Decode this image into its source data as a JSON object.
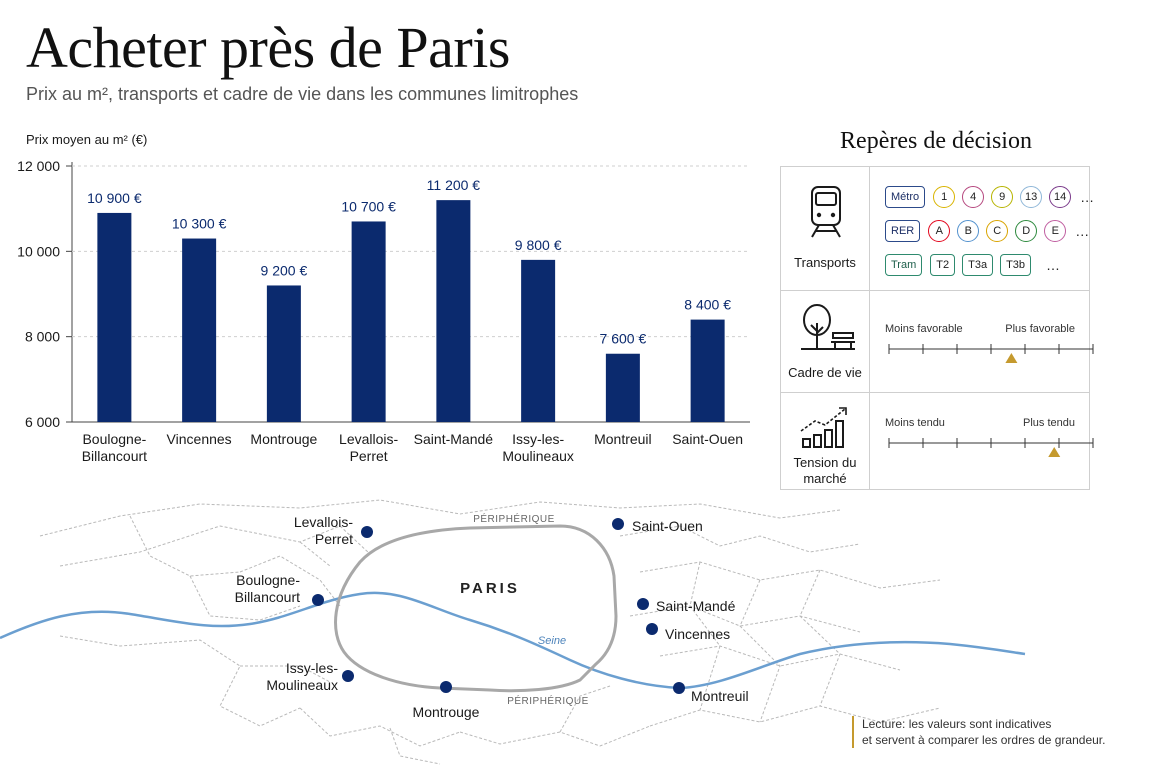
{
  "header": {
    "title": "Acheter près de Paris",
    "subtitle": "Prix au m², transports et cadre de vie dans les communes limitrophes"
  },
  "chart_data": {
    "type": "bar",
    "ylabel": "Prix moyen au m² (€)",
    "ylim": [
      6000,
      12000
    ],
    "yticks": [
      6000,
      8000,
      10000,
      12000
    ],
    "ytick_labels": [
      "6 000",
      "8 000",
      "10 000",
      "12 000"
    ],
    "grid": true,
    "bar_color": "#0b2a6e",
    "categories": [
      [
        "Boulogne-",
        "Billancourt"
      ],
      [
        "Vincennes"
      ],
      [
        "Montrouge"
      ],
      [
        "Levallois-",
        "Perret"
      ],
      [
        "Saint-Mandé"
      ],
      [
        "Issy-les-",
        "Moulineaux"
      ],
      [
        "Montreuil"
      ],
      [
        "Saint-Ouen"
      ]
    ],
    "values": [
      10900,
      10300,
      9200,
      10700,
      11200,
      9800,
      7600,
      8400
    ],
    "value_labels": [
      "10 900 €",
      "10 300 €",
      "9 200 €",
      "10 700 €",
      "11 200 €",
      "9 800 €",
      "7 600 €",
      "8 400 €"
    ]
  },
  "reperes": {
    "title": "Repères de décision",
    "transports": {
      "label": "Transports",
      "icon": "train-icon",
      "metro": {
        "label": "Métro",
        "lines": [
          "1",
          "4",
          "9",
          "13",
          "14"
        ],
        "colors": [
          "#d9b400",
          "#b5477e",
          "#b7b400",
          "#8fb7d8",
          "#7a3a8a"
        ]
      },
      "rer": {
        "label": "RER",
        "lines": [
          "A",
          "B",
          "C",
          "D",
          "E"
        ],
        "colors": [
          "#e3051c",
          "#5291ce",
          "#d9a400",
          "#2e8a3e",
          "#c05ea0"
        ]
      },
      "tram": {
        "label": "Tram",
        "lines": [
          "T2",
          "T3a",
          "T3b"
        ]
      },
      "more": "…"
    },
    "cadre_de_vie": {
      "label": "Cadre de vie",
      "icon": "tree-bench-icon",
      "left": "Moins favorable",
      "right": "Plus favorable",
      "level": 0.6
    },
    "tension": {
      "label_lines": [
        "Tension du",
        "marché"
      ],
      "icon": "rising-bars-icon",
      "left": "Moins tendu",
      "right": "Plus tendu",
      "level": 0.81
    },
    "marker_color": "#c59a2e"
  },
  "map": {
    "city_label": "PARIS",
    "ring_label": "PÉRIPHÉRIQUE",
    "river_label": "Seine",
    "river_color": "#6b9fd0",
    "dot_color": "#0b2a6e",
    "communes": [
      {
        "lines": [
          "Levallois-",
          "Perret"
        ]
      },
      {
        "lines": [
          "Saint-Ouen"
        ]
      },
      {
        "lines": [
          "Boulogne-",
          "Billancourt"
        ]
      },
      {
        "lines": [
          "Saint-Mandé"
        ]
      },
      {
        "lines": [
          "Vincennes"
        ]
      },
      {
        "lines": [
          "Issy-les-",
          "Moulineaux"
        ]
      },
      {
        "lines": [
          "Montrouge"
        ]
      },
      {
        "lines": [
          "Montreuil"
        ]
      }
    ]
  },
  "note": {
    "line1": "Lecture: les valeurs sont indicatives",
    "line2": "et servent à comparer les ordres de grandeur."
  }
}
